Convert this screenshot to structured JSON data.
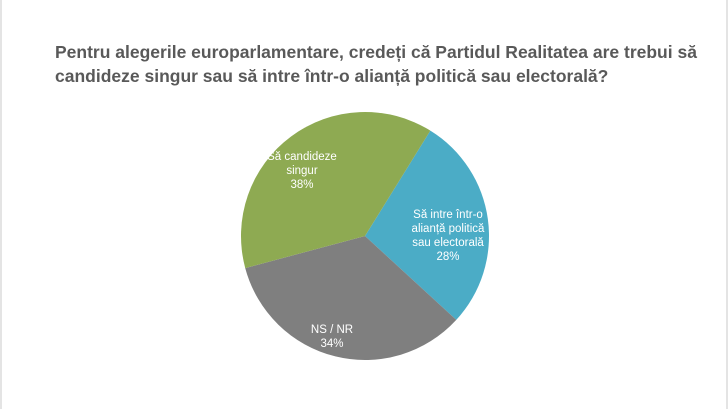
{
  "chart_data": {
    "type": "pie",
    "title": "Pentru alegerile europarlamentare, credeți că Partidul Realitatea are trebui să candideze singur sau să intre într-o alianță politică sau electorală?",
    "slices": [
      {
        "label": "Să intre într-o alianță politică sau electorală",
        "label_lines": [
          "Să intre într-o",
          "alianță politică",
          "sau electorală"
        ],
        "value": 28,
        "value_label": "28%",
        "color": "#4bacc6"
      },
      {
        "label": "NS / NR",
        "label_lines": [
          "NS / NR"
        ],
        "value": 34,
        "value_label": "34%",
        "color": "#7f7f7f"
      },
      {
        "label": "Să candideze singur",
        "label_lines": [
          "Să candideze",
          "singur"
        ],
        "value": 38,
        "value_label": "38%",
        "color": "#8eaa52"
      }
    ],
    "legend": "none"
  }
}
